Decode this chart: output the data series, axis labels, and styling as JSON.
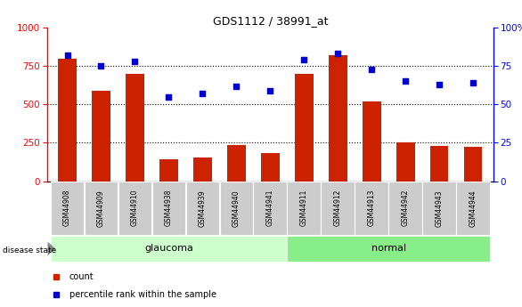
{
  "title": "GDS1112 / 38991_at",
  "samples": [
    "GSM44908",
    "GSM44909",
    "GSM44910",
    "GSM44938",
    "GSM44939",
    "GSM44940",
    "GSM44941",
    "GSM44911",
    "GSM44912",
    "GSM44913",
    "GSM44942",
    "GSM44943",
    "GSM44944"
  ],
  "count_values": [
    800,
    590,
    700,
    145,
    155,
    235,
    185,
    700,
    820,
    520,
    255,
    230,
    225
  ],
  "percentile_values": [
    82,
    75,
    78,
    55,
    57,
    62,
    59,
    79,
    83,
    73,
    65,
    63,
    64
  ],
  "groups": [
    {
      "label": "glaucoma",
      "start": 0,
      "end": 7,
      "color": "#ccffcc"
    },
    {
      "label": "normal",
      "start": 7,
      "end": 13,
      "color": "#88ee88"
    }
  ],
  "bar_color": "#cc2200",
  "dot_color": "#0000cc",
  "label_box_color": "#cccccc",
  "ylim_left": [
    0,
    1000
  ],
  "ylim_right": [
    0,
    100
  ],
  "yticks_left": [
    0,
    250,
    500,
    750,
    1000
  ],
  "yticks_right": [
    0,
    25,
    50,
    75,
    100
  ],
  "grid_values": [
    250,
    500,
    750
  ],
  "background_color": "#ffffff",
  "bar_width": 0.55
}
